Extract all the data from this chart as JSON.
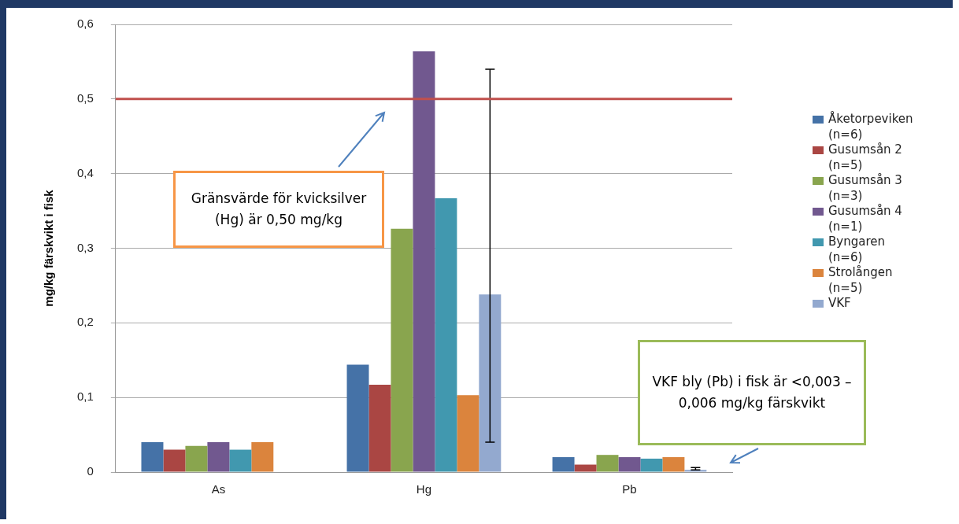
{
  "chart_data": {
    "type": "bar",
    "ylabel": "mg/kg färskvikt i fisk",
    "categories": [
      "As",
      "Hg",
      "Pb"
    ],
    "series": [
      {
        "name": "Åketorpeviken (n=6)",
        "color": "#4572a7",
        "values": [
          0.04,
          0.144,
          0.02
        ]
      },
      {
        "name": "Gusumsån 2 (n=5)",
        "color": "#aa4643",
        "values": [
          0.03,
          0.117,
          0.01
        ]
      },
      {
        "name": "Gusumsån 3 (n=3)",
        "color": "#89a54e",
        "values": [
          0.035,
          0.326,
          0.023
        ]
      },
      {
        "name": "Gusumsån 4 (n=1)",
        "color": "#71588f",
        "values": [
          0.04,
          0.564,
          0.02
        ]
      },
      {
        "name": "Byngaren (n=6)",
        "color": "#4198af",
        "values": [
          0.03,
          0.367,
          0.018
        ]
      },
      {
        "name": "Strolången (n=5)",
        "color": "#db843d",
        "values": [
          0.04,
          0.103,
          0.02
        ]
      },
      {
        "name": "VKF",
        "color": "#93a9cf",
        "values": [
          null,
          0.238,
          0.003
        ],
        "errors": [
          null,
          [
            0.04,
            0.54
          ],
          [
            0.003,
            0.006
          ]
        ]
      }
    ],
    "ylim": [
      0,
      0.6
    ],
    "yticks": [
      0,
      {
        "value": 0.1,
        "label": "0,1"
      },
      {
        "value": 0.2,
        "label": "0,2"
      },
      {
        "value": 0.3,
        "label": "0,3"
      },
      {
        "value": 0.4,
        "label": "0,4"
      },
      {
        "value": 0.5,
        "label": "0,5"
      },
      {
        "value": 0.6,
        "label": "0,6"
      }
    ],
    "ref_lines": [
      {
        "axis": "y",
        "value": 0.5,
        "color": "#c0504d"
      }
    ],
    "annotations": [
      "Gränsvärde för kvicksilver (Hg) är 0,50 mg/kg",
      "VKF  bly (Pb) i fisk är <0,003 – 0,006 mg/kg färskvikt"
    ],
    "grid": "y",
    "legend": "right"
  }
}
